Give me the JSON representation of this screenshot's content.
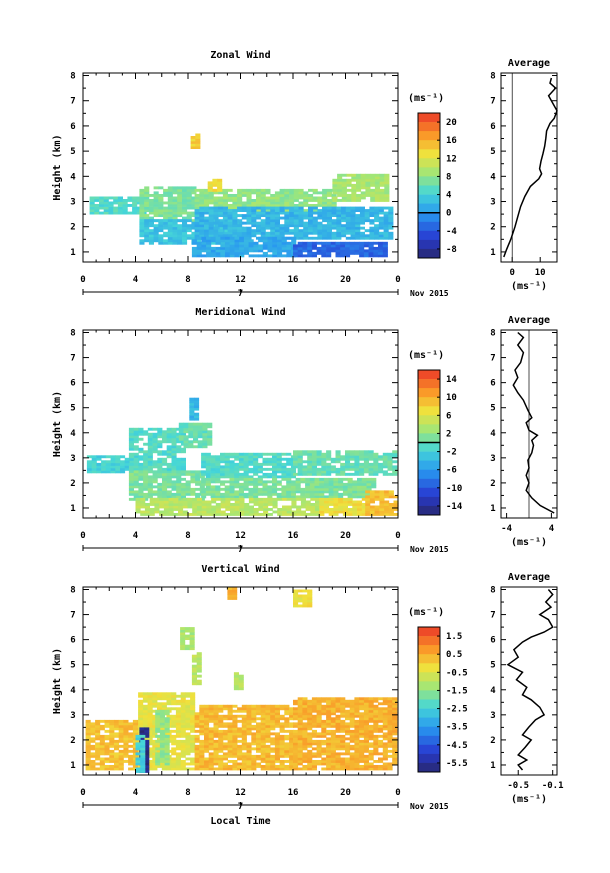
{
  "chart_data": [
    {
      "type": "heatmap",
      "title": "Zonal Wind",
      "ylabel": "Height (km)",
      "xlabel": "",
      "x_ticks": [
        "0",
        "4",
        "8",
        "12",
        "16",
        "20",
        "0"
      ],
      "y_ticks": [
        "1",
        "2",
        "3",
        "4",
        "5",
        "6",
        "7",
        "8"
      ],
      "xlim": [
        0,
        24
      ],
      "ylim": [
        0.6,
        8.1
      ],
      "date_marker": "7",
      "date_label": "Nov 2015",
      "colorbar": {
        "unit": "(ms⁻¹)",
        "ticks": [
          "20",
          "16",
          "12",
          "8",
          "4",
          "0",
          "-4",
          "-8"
        ],
        "range": [
          -10,
          22
        ],
        "zero_line": 0
      },
      "regions": [
        {
          "x0": 0.5,
          "x1": 4.5,
          "y0": 2.5,
          "y1": 3.2,
          "value": 5
        },
        {
          "x0": 4.3,
          "x1": 8.5,
          "y0": 2.2,
          "y1": 3.6,
          "value": 7
        },
        {
          "x0": 8.5,
          "x1": 19,
          "y0": 2.6,
          "y1": 3.5,
          "value": 8
        },
        {
          "x0": 19,
          "x1": 23,
          "y0": 3.0,
          "y1": 4.1,
          "value": 9
        },
        {
          "x0": 4.3,
          "x1": 12,
          "y0": 1.3,
          "y1": 2.3,
          "value": 3
        },
        {
          "x0": 8.5,
          "x1": 23.5,
          "y0": 1.5,
          "y1": 2.8,
          "value": 2
        },
        {
          "x0": 8.3,
          "x1": 16,
          "y0": 0.8,
          "y1": 1.6,
          "value": 1
        },
        {
          "x0": 16,
          "x1": 23,
          "y0": 0.8,
          "y1": 1.4,
          "value": -3
        },
        {
          "x0": 8.2,
          "x1": 8.6,
          "y0": 5.1,
          "y1": 5.6,
          "value": 14
        },
        {
          "x0": 9.5,
          "x1": 10.3,
          "y0": 3.4,
          "y1": 3.9,
          "value": 13
        }
      ],
      "profile": {
        "title": "Average",
        "xlabel": "(ms⁻¹)",
        "x_ticks": [
          "0",
          "10"
        ],
        "xlim": [
          -4,
          16
        ],
        "ylim": [
          0.6,
          8.1
        ],
        "zero_line": 0,
        "points": [
          [
            -3.0,
            0.8
          ],
          [
            -2.0,
            1.1
          ],
          [
            -0.5,
            1.5
          ],
          [
            1.0,
            2.0
          ],
          [
            2.0,
            2.4
          ],
          [
            3.0,
            2.8
          ],
          [
            4.5,
            3.2
          ],
          [
            6.5,
            3.6
          ],
          [
            9.5,
            3.9
          ],
          [
            10.5,
            4.1
          ],
          [
            9.8,
            4.3
          ],
          [
            10.3,
            4.6
          ],
          [
            11.0,
            4.9
          ],
          [
            11.6,
            5.2
          ],
          [
            12.0,
            5.5
          ],
          [
            12.3,
            5.8
          ],
          [
            13.5,
            6.1
          ],
          [
            15.0,
            6.3
          ],
          [
            16.0,
            6.6
          ],
          [
            14.5,
            6.9
          ],
          [
            13.0,
            7.2
          ],
          [
            15.5,
            7.5
          ],
          [
            13.5,
            7.7
          ],
          [
            14.0,
            7.9
          ]
        ]
      }
    },
    {
      "type": "heatmap",
      "title": "Meridional Wind",
      "ylabel": "Height (km)",
      "xlabel": "",
      "x_ticks": [
        "0",
        "4",
        "8",
        "12",
        "16",
        "20",
        "0"
      ],
      "y_ticks": [
        "1",
        "2",
        "3",
        "4",
        "5",
        "6",
        "7",
        "8"
      ],
      "xlim": [
        0,
        24
      ],
      "ylim": [
        0.6,
        8.1
      ],
      "date_marker": "7",
      "date_label": "Nov 2015",
      "colorbar": {
        "unit": "(ms⁻¹)",
        "ticks": [
          "14",
          "10",
          "6",
          "2",
          "-2",
          "-6",
          "-10",
          "-14"
        ],
        "range": [
          -16,
          16
        ],
        "zero_line": 0
      },
      "regions": [
        {
          "x0": 0.3,
          "x1": 4.0,
          "y0": 2.4,
          "y1": 3.1,
          "value": -2
        },
        {
          "x0": 3.5,
          "x1": 7.5,
          "y0": 2.4,
          "y1": 4.2,
          "value": -1
        },
        {
          "x0": 7.3,
          "x1": 9.7,
          "y0": 3.4,
          "y1": 4.3,
          "value": 0
        },
        {
          "x0": 8.1,
          "x1": 8.5,
          "y0": 4.5,
          "y1": 5.3,
          "value": -4
        },
        {
          "x0": 3.5,
          "x1": 9.0,
          "y0": 1.3,
          "y1": 2.5,
          "value": 1
        },
        {
          "x0": 9.0,
          "x1": 16,
          "y0": 2.2,
          "y1": 3.2,
          "value": -1
        },
        {
          "x0": 16,
          "x1": 23.8,
          "y0": 2.3,
          "y1": 3.3,
          "value": 0
        },
        {
          "x0": 9.0,
          "x1": 22,
          "y0": 1.4,
          "y1": 2.2,
          "value": 1
        },
        {
          "x0": 4.0,
          "x1": 18,
          "y0": 0.7,
          "y1": 1.4,
          "value": 4
        },
        {
          "x0": 18,
          "x1": 21.5,
          "y0": 0.7,
          "y1": 1.4,
          "value": 7
        },
        {
          "x0": 21.5,
          "x1": 24,
          "y0": 0.7,
          "y1": 1.7,
          "value": 9
        }
      ],
      "profile": {
        "title": "Average",
        "xlabel": "(ms⁻¹)",
        "x_ticks": [
          "-4",
          "4"
        ],
        "xlim": [
          -5,
          5
        ],
        "ylim": [
          0.6,
          8.1
        ],
        "zero_line": 0,
        "points": [
          [
            4.5,
            0.8
          ],
          [
            2.0,
            1.1
          ],
          [
            0.5,
            1.4
          ],
          [
            -0.5,
            1.7
          ],
          [
            0.0,
            2.0
          ],
          [
            -0.5,
            2.3
          ],
          [
            0.0,
            2.6
          ],
          [
            -0.2,
            2.9
          ],
          [
            0.5,
            3.2
          ],
          [
            0.8,
            3.5
          ],
          [
            0.5,
            3.7
          ],
          [
            1.5,
            3.9
          ],
          [
            0.0,
            4.1
          ],
          [
            -0.5,
            4.4
          ],
          [
            0.5,
            4.6
          ],
          [
            -0.2,
            4.9
          ],
          [
            -1.0,
            5.3
          ],
          [
            -2.0,
            5.6
          ],
          [
            -2.8,
            5.9
          ],
          [
            -2.0,
            6.2
          ],
          [
            -2.5,
            6.5
          ],
          [
            -1.5,
            6.8
          ],
          [
            -1.0,
            7.2
          ],
          [
            -2.0,
            7.5
          ],
          [
            -1.0,
            7.8
          ],
          [
            -2.0,
            8.0
          ]
        ]
      }
    },
    {
      "type": "heatmap",
      "title": "Vertical Wind",
      "ylabel": "Height (km)",
      "xlabel": "Local Time",
      "x_ticks": [
        "0",
        "4",
        "8",
        "12",
        "16",
        "20",
        "0"
      ],
      "y_ticks": [
        "1",
        "2",
        "3",
        "4",
        "5",
        "6",
        "7",
        "8"
      ],
      "xlim": [
        0,
        24
      ],
      "ylim": [
        0.6,
        8.1
      ],
      "date_marker": "7",
      "date_label": "Nov 2015",
      "colorbar": {
        "unit": "(ms⁻¹)",
        "ticks": [
          "1.5",
          "0.5",
          "-0.5",
          "-1.5",
          "-2.5",
          "-3.5",
          "-4.5",
          "-5.5"
        ],
        "range": [
          -6.0,
          2.0
        ],
        "zero_line": null
      },
      "regions": [
        {
          "x0": 0.2,
          "x1": 4.2,
          "y0": 0.8,
          "y1": 2.8,
          "value": 0.2
        },
        {
          "x0": 4.2,
          "x1": 8.5,
          "y0": 0.8,
          "y1": 3.9,
          "value": -0.4
        },
        {
          "x0": 8.5,
          "x1": 16,
          "y0": 0.8,
          "y1": 3.4,
          "value": 0.3
        },
        {
          "x0": 16,
          "x1": 23.8,
          "y0": 0.8,
          "y1": 3.7,
          "value": 0.4
        },
        {
          "x0": 4.3,
          "x1": 4.8,
          "y0": 0.7,
          "y1": 2.5,
          "value": -5.8
        },
        {
          "x0": 4.0,
          "x1": 4.4,
          "y0": 0.7,
          "y1": 2.2,
          "value": -2.5
        },
        {
          "x0": 5.5,
          "x1": 6.5,
          "y0": 1.0,
          "y1": 3.2,
          "value": -1.5
        },
        {
          "x0": 7.4,
          "x1": 8.4,
          "y0": 5.6,
          "y1": 6.4,
          "value": -1.2
        },
        {
          "x0": 8.3,
          "x1": 8.7,
          "y0": 4.2,
          "y1": 5.4,
          "value": -1.0
        },
        {
          "x0": 11.5,
          "x1": 12.2,
          "y0": 4.0,
          "y1": 4.6,
          "value": -1.0
        },
        {
          "x0": 16.0,
          "x1": 17.2,
          "y0": 7.3,
          "y1": 7.9,
          "value": -0.3
        },
        {
          "x0": 11.0,
          "x1": 11.6,
          "y0": 7.6,
          "y1": 8.0,
          "value": 0.4
        }
      ],
      "profile": {
        "title": "Average",
        "xlabel": "(ms⁻¹)",
        "x_ticks": [
          "-0.5",
          "-0.1"
        ],
        "xlim": [
          -0.7,
          -0.05
        ],
        "ylim": [
          0.6,
          8.1
        ],
        "zero_line": null,
        "points": [
          [
            -0.45,
            0.8
          ],
          [
            -0.5,
            1.0
          ],
          [
            -0.4,
            1.2
          ],
          [
            -0.5,
            1.4
          ],
          [
            -0.42,
            1.7
          ],
          [
            -0.35,
            2.0
          ],
          [
            -0.45,
            2.2
          ],
          [
            -0.38,
            2.5
          ],
          [
            -0.3,
            2.8
          ],
          [
            -0.2,
            3.0
          ],
          [
            -0.25,
            3.3
          ],
          [
            -0.35,
            3.6
          ],
          [
            -0.45,
            3.8
          ],
          [
            -0.4,
            4.1
          ],
          [
            -0.52,
            4.4
          ],
          [
            -0.45,
            4.7
          ],
          [
            -0.62,
            5.0
          ],
          [
            -0.5,
            5.3
          ],
          [
            -0.55,
            5.6
          ],
          [
            -0.45,
            5.9
          ],
          [
            -0.35,
            6.1
          ],
          [
            -0.2,
            6.3
          ],
          [
            -0.1,
            6.5
          ],
          [
            -0.15,
            6.8
          ],
          [
            -0.25,
            7.0
          ],
          [
            -0.12,
            7.3
          ],
          [
            -0.18,
            7.5
          ],
          [
            -0.1,
            7.8
          ],
          [
            -0.15,
            8.0
          ]
        ]
      }
    }
  ]
}
